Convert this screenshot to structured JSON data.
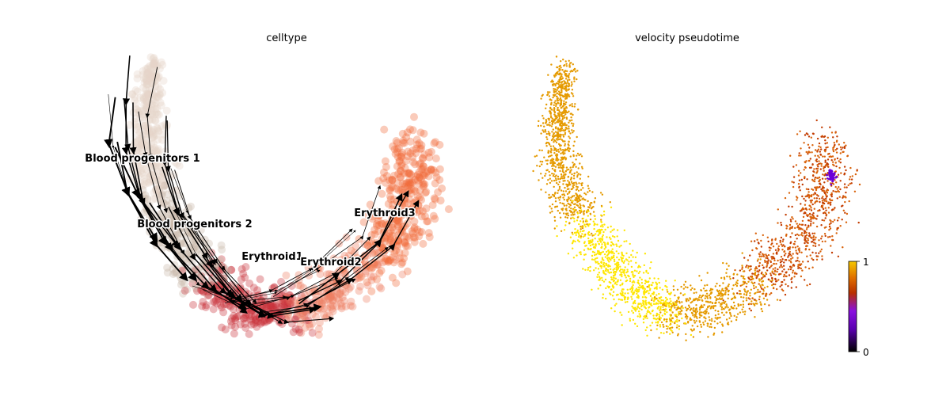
{
  "chart_data": [
    {
      "type": "scatter",
      "title": "celltype",
      "xlabel": "",
      "ylabel": "",
      "grid": false,
      "legend": "on data",
      "overlay": "velocity streamlines",
      "clusters": [
        {
          "name": "Blood progenitors 1",
          "color": "#e6d5c9"
        },
        {
          "name": "Blood progenitors 2",
          "color": "#c9b8aa"
        },
        {
          "name": "Erythroid1",
          "color": "#c8323a"
        },
        {
          "name": "Erythroid2",
          "color": "#ef7f62"
        },
        {
          "name": "Erythroid3",
          "color": "#f06a3a"
        }
      ]
    },
    {
      "type": "scatter",
      "title": "velocity pseudotime",
      "xlabel": "",
      "ylabel": "",
      "grid": false,
      "colormap": "gnuplot",
      "colorbar": {
        "min": 0,
        "max": 1,
        "ticks": [
          "0",
          "1"
        ],
        "placement": "bottom-right"
      }
    }
  ]
}
